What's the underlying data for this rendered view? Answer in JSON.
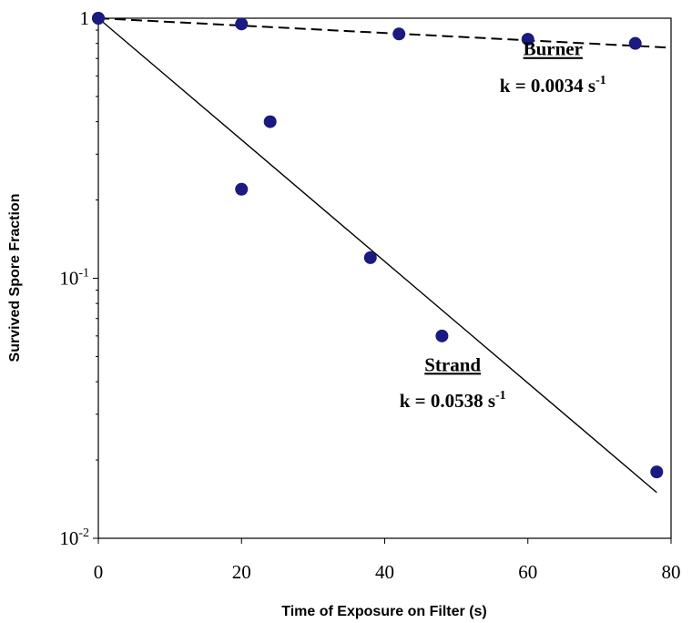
{
  "chart_data": {
    "type": "scatter",
    "title": "",
    "xlabel": "Time of Exposure on Filter (s)",
    "ylabel": "Survived Spore Fraction",
    "xlim": [
      0,
      80
    ],
    "ylim": [
      0.01,
      1
    ],
    "yscale": "log",
    "grid": false,
    "x_ticks": [
      0,
      20,
      40,
      60,
      80
    ],
    "x_tick_labels": [
      "0",
      "20",
      "40",
      "60",
      "80"
    ],
    "y_ticks": [
      0.01,
      0.1,
      1
    ],
    "y_tick_labels": [
      {
        "base": "10",
        "exp": "-2"
      },
      {
        "base": "10",
        "exp": "-1"
      },
      {
        "base": "1",
        "exp": ""
      }
    ],
    "marker_color": "#1a1a80",
    "series": [
      {
        "points": [
          {
            "x": 0,
            "y": 1.0
          },
          {
            "x": 20,
            "y": 0.95
          },
          {
            "x": 42,
            "y": 0.87
          },
          {
            "x": 60,
            "y": 0.83
          },
          {
            "x": 75,
            "y": 0.8
          }
        ],
        "fit": {
          "x": [
            0,
            80
          ],
          "y": [
            1.0,
            0.77
          ],
          "style": "dashed"
        }
      },
      {
        "points": [
          {
            "x": 0,
            "y": 1.0
          },
          {
            "x": 20,
            "y": 0.22
          },
          {
            "x": 24,
            "y": 0.4
          },
          {
            "x": 38,
            "y": 0.12
          },
          {
            "x": 48,
            "y": 0.06
          },
          {
            "x": 78,
            "y": 0.018
          }
        ],
        "fit": {
          "x": [
            0,
            78
          ],
          "y": [
            1.0,
            0.015
          ],
          "style": "solid"
        }
      }
    ],
    "annotations": [
      {
        "label": "Burner",
        "k_text": "k = 0.0034 s",
        "k_sup": "-1",
        "x": 63.5,
        "y": 0.72,
        "y2": 0.52
      },
      {
        "label": "Strand",
        "k_text": "k = 0.0538 s",
        "k_sup": "-1",
        "x": 49.5,
        "y": 0.044,
        "y2": 0.032
      }
    ]
  }
}
